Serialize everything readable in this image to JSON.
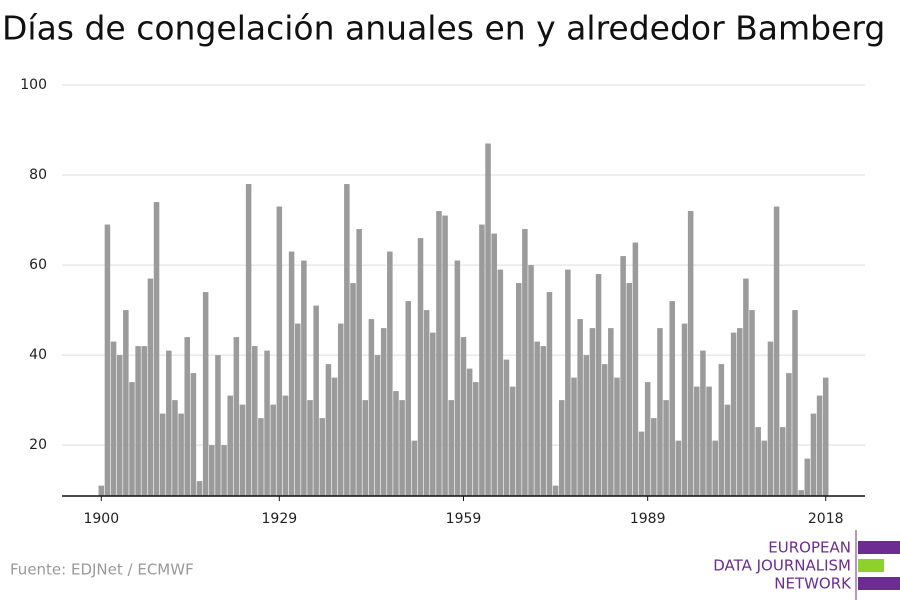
{
  "chart_data": {
    "type": "bar",
    "title": "Días de congelación anuales en y alrededor Bamberg",
    "source": "Fuente: EDJNet / ECMWF",
    "logo": [
      "EUROPEAN",
      "DATA JOURNALISM",
      "NETWORK"
    ],
    "color": "#9b9b9b",
    "x": [
      1900,
      1901,
      1902,
      1903,
      1904,
      1905,
      1906,
      1907,
      1908,
      1909,
      1910,
      1911,
      1912,
      1913,
      1914,
      1915,
      1916,
      1917,
      1918,
      1919,
      1920,
      1921,
      1922,
      1923,
      1924,
      1925,
      1926,
      1927,
      1928,
      1929,
      1930,
      1931,
      1932,
      1933,
      1934,
      1935,
      1936,
      1937,
      1938,
      1939,
      1940,
      1941,
      1942,
      1943,
      1944,
      1945,
      1946,
      1947,
      1948,
      1949,
      1950,
      1951,
      1952,
      1953,
      1954,
      1955,
      1956,
      1957,
      1958,
      1959,
      1960,
      1961,
      1962,
      1963,
      1964,
      1965,
      1966,
      1967,
      1968,
      1969,
      1970,
      1971,
      1972,
      1973,
      1974,
      1975,
      1976,
      1977,
      1978,
      1979,
      1980,
      1981,
      1982,
      1983,
      1984,
      1985,
      1986,
      1987,
      1988,
      1989,
      1990,
      1991,
      1992,
      1993,
      1994,
      1995,
      1996,
      1997,
      1998,
      1999,
      2000,
      2001,
      2002,
      2003,
      2004,
      2005,
      2006,
      2007,
      2008,
      2009,
      2010,
      2011,
      2012,
      2013,
      2014,
      2015,
      2016,
      2017,
      2018
    ],
    "values": [
      11,
      69,
      43,
      40,
      50,
      34,
      42,
      42,
      57,
      74,
      27,
      41,
      30,
      27,
      44,
      36,
      12,
      54,
      20,
      40,
      20,
      31,
      44,
      29,
      78,
      42,
      26,
      41,
      29,
      73,
      31,
      63,
      47,
      61,
      30,
      51,
      26,
      38,
      35,
      47,
      78,
      56,
      68,
      30,
      48,
      40,
      46,
      63,
      32,
      30,
      52,
      21,
      66,
      50,
      45,
      72,
      71,
      30,
      61,
      44,
      37,
      34,
      69,
      87,
      67,
      59,
      39,
      33,
      56,
      68,
      60,
      43,
      42,
      54,
      11,
      30,
      59,
      35,
      48,
      40,
      46,
      58,
      38,
      46,
      35,
      62,
      56,
      65,
      23,
      34,
      26,
      46,
      30,
      52,
      21,
      47,
      72,
      33,
      41,
      33,
      21,
      38,
      29,
      45,
      46,
      57,
      50,
      24,
      21,
      43,
      73,
      24,
      36,
      50,
      10,
      17,
      27,
      31,
      35
    ],
    "xlim": [
      1893.6,
      2024.4
    ],
    "xticks": [
      1900,
      1929,
      1959,
      1989,
      2018
    ],
    "ylim": [
      8.7,
      100
    ],
    "yticks": [
      20,
      40,
      60,
      80,
      100
    ],
    "grid": true
  }
}
